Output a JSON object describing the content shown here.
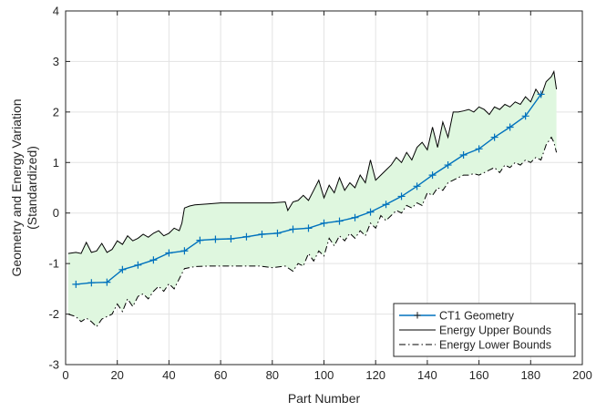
{
  "chart_data": {
    "type": "line",
    "title": "",
    "xlabel": "Part Number",
    "ylabel_lines": [
      "Geometry and Energy Variation",
      "(Standardized)"
    ],
    "xlim": [
      0,
      200
    ],
    "ylim": [
      -3,
      4
    ],
    "xticks": [
      0,
      20,
      40,
      60,
      80,
      100,
      120,
      140,
      160,
      180,
      200
    ],
    "yticks": [
      -3,
      -2,
      -1,
      0,
      1,
      2,
      3,
      4
    ],
    "xtick_labels": [
      "0",
      "20",
      "40",
      "60",
      "80",
      "100",
      "120",
      "140",
      "160",
      "180",
      "200"
    ],
    "ytick_labels": [
      "-3",
      "-2",
      "-1",
      "0",
      "1",
      "2",
      "3",
      "4"
    ],
    "grid": true,
    "legend_position": "bottom-right",
    "fill_color": "#dff7df",
    "series": [
      {
        "name": "CT1 Geometry",
        "color": "#0072bd",
        "style": "solid-plus-markers",
        "x": [
          4,
          10,
          16,
          22,
          28,
          34,
          40,
          46,
          52,
          58,
          64,
          70,
          76,
          82,
          88,
          94,
          100,
          106,
          112,
          118,
          124,
          130,
          136,
          142,
          148,
          154,
          160,
          166,
          172,
          178,
          184
        ],
        "y": [
          -1.41,
          -1.38,
          -1.37,
          -1.12,
          -1.03,
          -0.93,
          -0.79,
          -0.75,
          -0.54,
          -0.52,
          -0.51,
          -0.47,
          -0.42,
          -0.4,
          -0.32,
          -0.3,
          -0.2,
          -0.16,
          -0.09,
          0.02,
          0.17,
          0.33,
          0.53,
          0.75,
          0.95,
          1.15,
          1.27,
          1.5,
          1.7,
          1.92,
          2.35
        ]
      },
      {
        "name": "Energy Upper Bounds",
        "color": "#000000",
        "style": "solid",
        "x": [
          1,
          4,
          6,
          8,
          10,
          12,
          14,
          16,
          18,
          20,
          22,
          24,
          26,
          28,
          30,
          32,
          34,
          36,
          38,
          40,
          42,
          44,
          45,
          46,
          48,
          50,
          55,
          60,
          65,
          70,
          75,
          80,
          85,
          86,
          88,
          90,
          92,
          94,
          96,
          98,
          100,
          102,
          104,
          106,
          108,
          110,
          112,
          114,
          116,
          118,
          120,
          122,
          124,
          126,
          128,
          130,
          132,
          134,
          136,
          138,
          140,
          142,
          144,
          146,
          148,
          150,
          152,
          154,
          156,
          158,
          160,
          162,
          164,
          166,
          168,
          170,
          172,
          174,
          176,
          178,
          180,
          182,
          184,
          186,
          188,
          189,
          190
        ],
        "y": [
          -0.8,
          -0.78,
          -0.8,
          -0.58,
          -0.78,
          -0.75,
          -0.6,
          -0.78,
          -0.72,
          -0.55,
          -0.62,
          -0.45,
          -0.55,
          -0.5,
          -0.42,
          -0.48,
          -0.4,
          -0.35,
          -0.45,
          -0.4,
          -0.3,
          -0.35,
          -0.2,
          0.1,
          0.14,
          0.16,
          0.18,
          0.2,
          0.2,
          0.2,
          0.2,
          0.2,
          0.22,
          0.05,
          0.22,
          0.25,
          0.35,
          0.25,
          0.45,
          0.65,
          0.3,
          0.55,
          0.4,
          0.7,
          0.45,
          0.6,
          0.5,
          0.75,
          0.6,
          1.05,
          0.65,
          0.75,
          0.85,
          0.95,
          1.1,
          1.0,
          1.2,
          1.05,
          1.3,
          1.4,
          1.25,
          1.7,
          1.3,
          1.8,
          1.5,
          2.0,
          2.0,
          2.02,
          2.05,
          2.0,
          2.1,
          2.05,
          1.95,
          2.1,
          2.05,
          2.15,
          2.1,
          2.2,
          2.15,
          2.3,
          2.2,
          2.45,
          2.3,
          2.6,
          2.7,
          2.8,
          2.45
        ]
      },
      {
        "name": "Energy Lower Bounds",
        "color": "#000000",
        "style": "dash-dot",
        "x": [
          1,
          4,
          6,
          8,
          10,
          12,
          14,
          16,
          18,
          20,
          22,
          24,
          26,
          28,
          30,
          32,
          34,
          36,
          38,
          40,
          42,
          44,
          46,
          48,
          50,
          55,
          60,
          65,
          70,
          75,
          80,
          85,
          88,
          90,
          92,
          94,
          96,
          98,
          100,
          102,
          104,
          106,
          108,
          110,
          112,
          114,
          116,
          118,
          120,
          122,
          124,
          126,
          128,
          130,
          132,
          134,
          136,
          138,
          140,
          142,
          144,
          146,
          148,
          150,
          152,
          154,
          156,
          158,
          160,
          162,
          164,
          166,
          168,
          170,
          172,
          174,
          176,
          178,
          180,
          182,
          184,
          186,
          188,
          189,
          190
        ],
        "y": [
          -2.0,
          -2.05,
          -2.15,
          -2.08,
          -2.15,
          -2.25,
          -2.1,
          -2.05,
          -2.0,
          -1.8,
          -1.95,
          -1.7,
          -1.85,
          -1.65,
          -1.6,
          -1.7,
          -1.55,
          -1.45,
          -1.55,
          -1.4,
          -1.5,
          -1.3,
          -1.1,
          -1.08,
          -1.06,
          -1.05,
          -1.05,
          -1.05,
          -1.05,
          -1.05,
          -1.08,
          -1.05,
          -1.15,
          -1.0,
          -1.05,
          -0.8,
          -0.95,
          -0.75,
          -0.85,
          -0.5,
          -0.65,
          -0.45,
          -0.55,
          -0.4,
          -0.5,
          -0.35,
          -0.45,
          -0.2,
          -0.3,
          -0.05,
          -0.15,
          -0.05,
          0.05,
          0.0,
          0.15,
          0.1,
          0.2,
          0.15,
          0.4,
          0.35,
          0.5,
          0.45,
          0.6,
          0.65,
          0.7,
          0.75,
          0.75,
          0.78,
          0.75,
          0.8,
          0.85,
          0.9,
          0.8,
          0.95,
          0.9,
          1.0,
          0.95,
          1.05,
          1.0,
          1.1,
          1.05,
          1.35,
          1.5,
          1.4,
          1.2
        ]
      }
    ]
  }
}
